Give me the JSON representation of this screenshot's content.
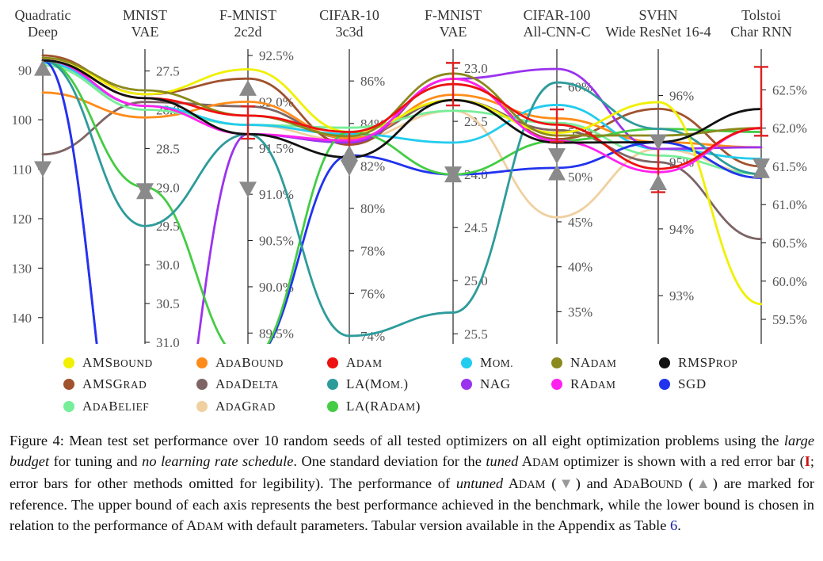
{
  "chart_data": {
    "type": "parallel-coordinates",
    "axes": [
      {
        "name": "Quadratic",
        "subname": "Deep",
        "ticks": [
          "90",
          "100",
          "110",
          "120",
          "130",
          "140"
        ],
        "ylim": [
          87,
          145
        ]
      },
      {
        "name": "MNIST",
        "subname": "VAE",
        "ticks": [
          "27.5",
          "28.0",
          "28.5",
          "29.0",
          "29.5",
          "30.0",
          "30.5",
          "31.0"
        ],
        "ylim": [
          27.3,
          31.0
        ]
      },
      {
        "name": "F-MNIST",
        "subname": "2c2d",
        "ticks": [
          "92.5%",
          "92.0%",
          "91.5%",
          "91.0%",
          "90.5%",
          "90.0%",
          "89.5%"
        ],
        "ylim": [
          92.5,
          89.4
        ]
      },
      {
        "name": "CIFAR-10",
        "subname": "3c3d",
        "ticks": [
          "86%",
          "84%",
          "82%",
          "80%",
          "78%",
          "76%",
          "74%"
        ],
        "ylim": [
          87.2,
          73.7
        ]
      },
      {
        "name": "F-MNIST",
        "subname": "VAE",
        "ticks": [
          "23.0",
          "23.5",
          "24.0",
          "24.5",
          "25.0",
          "25.5"
        ],
        "ylim": [
          22.88,
          25.58
        ]
      },
      {
        "name": "CIFAR-100",
        "subname": "All-CNN-C",
        "ticks": [
          "60%",
          "55%",
          "50%",
          "45%",
          "40%",
          "35%"
        ],
        "ylim": [
          63.5,
          31.6
        ]
      },
      {
        "name": "SVHN",
        "subname": "Wide ResNet 16-4",
        "ticks": [
          "96%",
          "95%",
          "94%",
          "93%"
        ],
        "ylim": [
          96.6,
          92.3
        ]
      },
      {
        "name": "Tolstoi",
        "subname": "Char RNN",
        "ticks": [
          "62.5%",
          "62.0%",
          "61.5%",
          "61.0%",
          "60.5%",
          "60.0%",
          "59.5%"
        ],
        "ylim": [
          62.95,
          59.2
        ]
      }
    ],
    "series": [
      {
        "name": "AMSBound",
        "label_main": "AMS",
        "label_sc": "Bound",
        "color": "#f0f000",
        "values": [
          87.5,
          27.8,
          92.35,
          83.6,
          23.3,
          54.9,
          95.9,
          59.7
        ]
      },
      {
        "name": "AdaBound",
        "label_main": "A",
        "label_sc": "da",
        "label_main2": "B",
        "label_sc2": "ound",
        "color": "#ff8c1a",
        "values": [
          94.5,
          28.1,
          92.0,
          83.3,
          23.25,
          56.5,
          95.3,
          61.75
        ]
      },
      {
        "name": "Adam",
        "label_main": "A",
        "label_sc": "dam",
        "color": "#ee1111",
        "values": [
          88.0,
          27.85,
          91.85,
          83.6,
          23.15,
          55.8,
          94.9,
          62.0
        ]
      },
      {
        "name": "Mom.",
        "label_main": "M",
        "label_sc": "om.",
        "color": "#22ccee",
        "values": [
          88.5,
          27.95,
          91.75,
          83.5,
          23.7,
          58.0,
          95.2,
          61.6
        ]
      },
      {
        "name": "NAdam",
        "label_main": "NA",
        "label_sc": "dam",
        "color": "#8a8a1e",
        "values": [
          87.5,
          27.75,
          91.85,
          83.4,
          23.05,
          54.6,
          95.4,
          62.0
        ]
      },
      {
        "name": "RMSProp",
        "label_main": "RMSP",
        "label_sc": "rop",
        "color": "#111111",
        "values": [
          88.0,
          27.85,
          91.65,
          82.4,
          23.3,
          53.8,
          95.3,
          62.25
        ]
      },
      {
        "name": "AMSGrad",
        "label_main": "AMSG",
        "label_sc": "rad",
        "color": "#a0522d",
        "values": [
          87.0,
          27.8,
          92.25,
          83.0,
          23.1,
          54.2,
          95.8,
          61.5
        ]
      },
      {
        "name": "AdaDelta",
        "label_main": "A",
        "label_sc": "da",
        "label_main2": "D",
        "label_sc2": "elta",
        "color": "#7e6464",
        "values": [
          107.0,
          27.9,
          91.95,
          83.3,
          23.3,
          55.2,
          95.0,
          60.55
        ]
      },
      {
        "name": "LA(Mom.)",
        "label_main": "LA(M",
        "label_sc": "om.",
        "label_main2": ")",
        "label_sc2": "",
        "color": "#2e9b9b",
        "values": [
          88.0,
          29.5,
          91.65,
          74.0,
          25.3,
          60.5,
          95.5,
          61.4
        ]
      },
      {
        "name": "NAG",
        "label_main": "NAG",
        "label_sc": "",
        "color": "#9b33ee",
        "values": [
          88.0,
          34.0,
          91.65,
          83.1,
          23.1,
          62.0,
          95.2,
          61.75
        ]
      },
      {
        "name": "RAdam",
        "label_main": "RA",
        "label_sc": "dam",
        "color": "#ff22ee",
        "values": [
          88.0,
          27.95,
          91.65,
          83.2,
          23.1,
          54.0,
          94.85,
          62.0
        ]
      },
      {
        "name": "SGD",
        "label_main": "SGD",
        "label_sc": "",
        "color": "#2233ee",
        "values": [
          88.0,
          34.0,
          89.2,
          82.5,
          24.0,
          51.0,
          95.3,
          61.35
        ]
      },
      {
        "name": "AdaBelief",
        "label_main": "A",
        "label_sc": "da",
        "label_main2": "B",
        "label_sc2": "elief",
        "color": "#77ee99",
        "values": [
          89.0,
          28.0,
          91.75,
          83.8,
          23.4,
          56.0,
          95.1,
          61.4
        ]
      },
      {
        "name": "AdaGrad",
        "label_main": "A",
        "label_sc": "da",
        "label_main2": "G",
        "label_sc2": "rad",
        "color": "#f0d0a0",
        "values": [
          89.0,
          27.95,
          91.75,
          83.2,
          23.4,
          45.5,
          95.2,
          61.4
        ]
      },
      {
        "name": "LA(RAdam)",
        "label_main": "LA(RA",
        "label_sc": "dam",
        "label_main2": ")",
        "label_sc2": "",
        "color": "#44cc44",
        "values": [
          88.0,
          29.0,
          89.2,
          83.6,
          24.0,
          54.0,
          95.5,
          61.95
        ]
      }
    ],
    "adam_error_bars": [
      {
        "axis": "F-MNIST 2c2d",
        "low": 91.6,
        "high": 91.95
      },
      {
        "axis": "CIFAR-10 3c3d",
        "low": 82.2,
        "high": 83.6
      },
      {
        "axis": "F-MNIST VAE",
        "low": 22.95,
        "high": 23.35
      },
      {
        "axis": "CIFAR-100 All-CNN-C",
        "low": 53.9,
        "high": 57.5
      },
      {
        "axis": "SVHN Wide ResNet 16-4",
        "low": 94.55,
        "high": 95.4
      },
      {
        "axis": "Tolstoi Char RNN",
        "low": 61.9,
        "high": 62.8
      }
    ],
    "untuned_adam": [
      110,
      29.05,
      91.05,
      81.9,
      24.0,
      52.3,
      95.3,
      61.5
    ],
    "untuned_adabound": [
      89.5,
      29.05,
      92.15,
      82.6,
      24.0,
      50.5,
      94.7,
      61.45
    ],
    "marker_colors": {
      "untuned": "#8a8a8a",
      "error_bar": "#dd2020"
    }
  },
  "caption": {
    "figure_label": "Figure 4:",
    "text_1": " Mean test set performance over 10 random seeds of all tested optimizers on all eight optimization problems using the ",
    "large_budget": "large budget",
    "text_2": " for tuning and ",
    "no_lr_schedule": "no learning rate schedule",
    "text_3": ". One standard deviation for the ",
    "tuned": "tuned",
    "adam_a": "A",
    "adam_sc": "dam",
    "text_4": " optimizer is shown with a red error bar (",
    "error_bar_glyph": "I",
    "text_5": "; error bars for other methods omitted for legibility). The performance of ",
    "untuned": "untuned",
    "adam2_a": "A",
    "adam2_sc": "dam",
    "text_6": " (",
    "down_triangle": "▼",
    "text_7": ") and ",
    "adabound_a": "A",
    "adabound_sc1": "da",
    "adabound_b": "B",
    "adabound_sc2": "ound",
    "text_8": " (",
    "up_triangle": "▲",
    "text_9": ") are marked for reference. The upper bound of each axis represents the best performance achieved in the benchmark, while the lower bound is chosen in relation to the performance of ",
    "adam3_a": "A",
    "adam3_sc": "dam",
    "text_10": " with default parameters. Tabular version available in the Appendix as Table ",
    "table_ref": "6",
    "text_11": "."
  }
}
